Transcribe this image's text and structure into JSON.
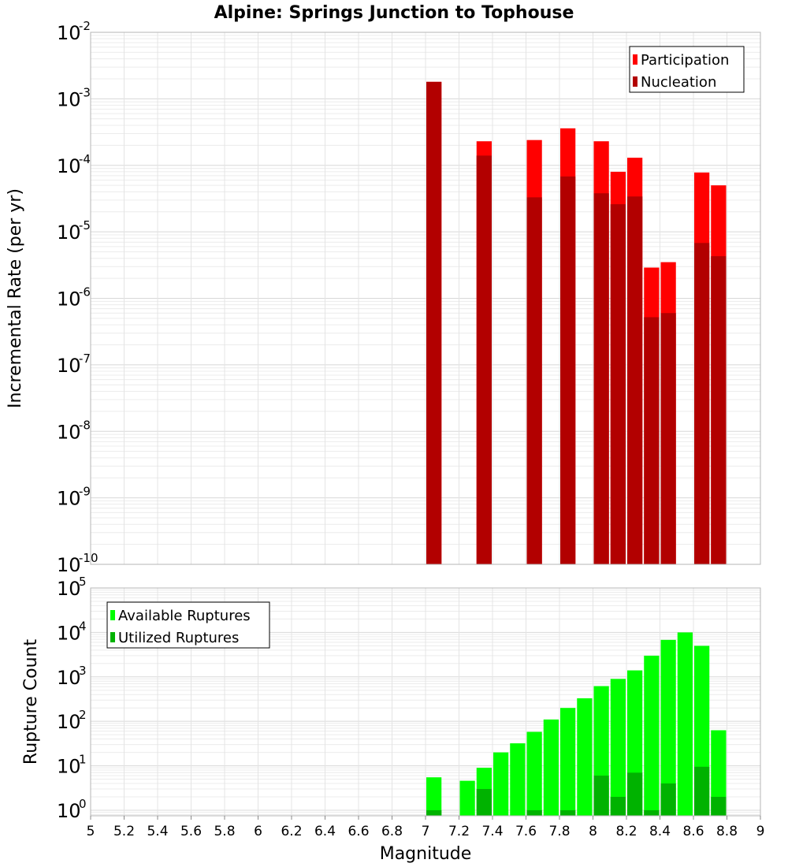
{
  "chart_data": [
    {
      "type": "bar",
      "title": "Alpine: Springs Junction to Tophouse",
      "ylabel": "Incremental Rate (per yr)",
      "xlabel": "",
      "yscale": "log",
      "ylim": [
        1e-10,
        0.01
      ],
      "xlim": [
        5,
        9
      ],
      "grid": true,
      "legend_position": "top-right",
      "y_ticks": [
        {
          "base": "10",
          "exp": "-10"
        },
        {
          "base": "10",
          "exp": "-9"
        },
        {
          "base": "10",
          "exp": "-8"
        },
        {
          "base": "10",
          "exp": "-7"
        },
        {
          "base": "10",
          "exp": "-6"
        },
        {
          "base": "10",
          "exp": "-5"
        },
        {
          "base": "10",
          "exp": "-4"
        },
        {
          "base": "10",
          "exp": "-3"
        },
        {
          "base": "10",
          "exp": "-2"
        }
      ],
      "series": [
        {
          "name": "Participation",
          "color": "#ff0000",
          "x": [
            7.05,
            7.35,
            7.65,
            7.85,
            8.05,
            8.15,
            8.25,
            8.35,
            8.45,
            8.65,
            8.75
          ],
          "values": [
            0.0018,
            0.00023,
            0.00024,
            0.00036,
            0.00023,
            8e-05,
            0.00013,
            2.9e-06,
            3.5e-06,
            7.8e-05,
            5e-05
          ]
        },
        {
          "name": "Nucleation",
          "color": "#b20000",
          "x": [
            7.05,
            7.35,
            7.65,
            7.85,
            8.05,
            8.15,
            8.25,
            8.35,
            8.45,
            8.65,
            8.75
          ],
          "values": [
            0.0018,
            0.00014,
            3.3e-05,
            6.8e-05,
            3.8e-05,
            2.6e-05,
            3.4e-05,
            5.2e-07,
            6e-07,
            6.8e-06,
            4.3e-06
          ]
        }
      ]
    },
    {
      "type": "bar",
      "title": "",
      "ylabel": "Rupture Count",
      "xlabel": "Magnitude",
      "yscale": "log",
      "ylim": [
        0.75,
        100000
      ],
      "xlim": [
        5,
        9
      ],
      "grid": true,
      "legend_position": "top-left",
      "x_ticks": [
        "5",
        "5.2",
        "5.4",
        "5.6",
        "5.8",
        "6",
        "6.2",
        "6.4",
        "6.6",
        "6.8",
        "7",
        "7.2",
        "7.4",
        "7.6",
        "7.8",
        "8",
        "8.2",
        "8.4",
        "8.6",
        "8.8",
        "9"
      ],
      "y_ticks": [
        {
          "base": "10",
          "exp": "0"
        },
        {
          "base": "10",
          "exp": "1"
        },
        {
          "base": "10",
          "exp": "2"
        },
        {
          "base": "10",
          "exp": "3"
        },
        {
          "base": "10",
          "exp": "4"
        },
        {
          "base": "10",
          "exp": "5"
        }
      ],
      "series": [
        {
          "name": "Available Ruptures",
          "color": "#00ff00",
          "x": [
            7.05,
            7.25,
            7.35,
            7.45,
            7.55,
            7.65,
            7.75,
            7.85,
            7.95,
            8.05,
            8.15,
            8.25,
            8.35,
            8.45,
            8.55,
            8.65,
            8.75
          ],
          "values": [
            5.5,
            4.6,
            9,
            20,
            32,
            58,
            110,
            200,
            330,
            620,
            900,
            1400,
            3000,
            6800,
            10000,
            5000,
            63
          ]
        },
        {
          "name": "Utilized Ruptures",
          "color": "#00b200",
          "x": [
            7.05,
            7.25,
            7.35,
            7.45,
            7.55,
            7.65,
            7.75,
            7.85,
            7.95,
            8.05,
            8.15,
            8.25,
            8.35,
            8.45,
            8.55,
            8.65,
            8.75
          ],
          "values": [
            1,
            0,
            3,
            0,
            0,
            1,
            0,
            1,
            0,
            6,
            2,
            7,
            1,
            4,
            0,
            9.5,
            2
          ]
        }
      ]
    }
  ]
}
